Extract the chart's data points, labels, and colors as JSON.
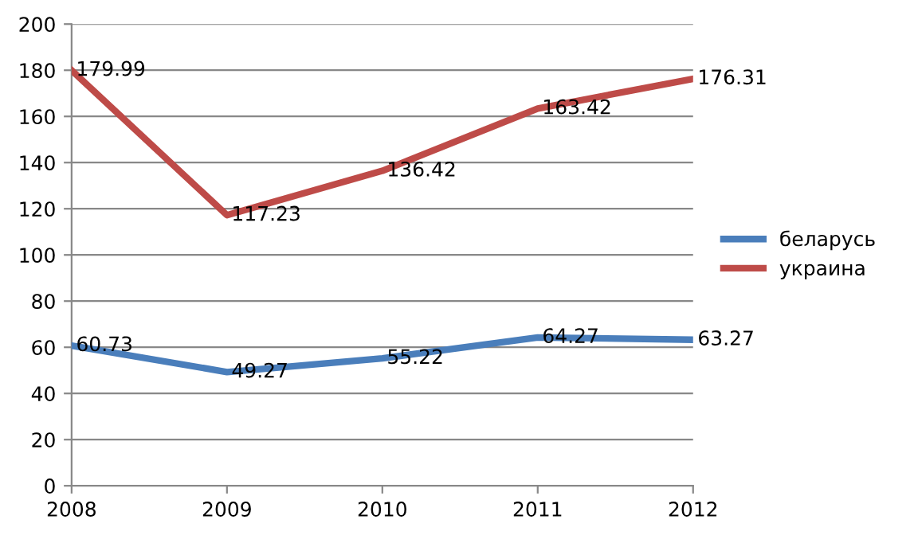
{
  "chart_data": {
    "type": "line",
    "x": [
      2008,
      2009,
      2010,
      2011,
      2012
    ],
    "series": [
      {
        "name": "беларусь",
        "color": "#4a7ebb",
        "values": [
          60.73,
          49.27,
          55.22,
          64.27,
          63.27
        ]
      },
      {
        "name": "украина",
        "color": "#be4b48",
        "values": [
          179.99,
          117.23,
          136.42,
          163.42,
          176.31
        ]
      }
    ],
    "xlim": [
      2008,
      2012
    ],
    "xticks": [
      2008,
      2009,
      2010,
      2011,
      2012
    ],
    "ylim": [
      0,
      200
    ],
    "yticks": [
      0,
      20,
      40,
      60,
      80,
      100,
      120,
      140,
      160,
      180,
      200
    ],
    "grid": "y",
    "legend": "right",
    "data_labels": true,
    "marker": "none",
    "line_style": "solid"
  }
}
